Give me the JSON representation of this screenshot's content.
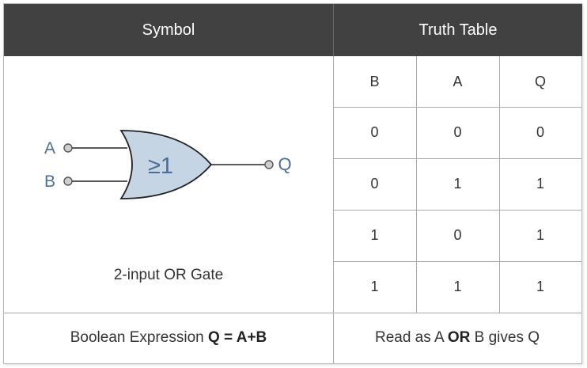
{
  "header": {
    "symbol": "Symbol",
    "truth_table": "Truth Table"
  },
  "gate": {
    "input_a": "A",
    "input_b": "B",
    "output": "Q",
    "symbol_text": "≥1",
    "caption": "2-input OR Gate",
    "fill_color": "#c5d5e4",
    "label_color": "#4a6f94"
  },
  "truth_table": {
    "columns": [
      "B",
      "A",
      "Q"
    ],
    "rows": [
      [
        "0",
        "0",
        "0"
      ],
      [
        "0",
        "1",
        "1"
      ],
      [
        "1",
        "0",
        "1"
      ],
      [
        "1",
        "1",
        "1"
      ]
    ]
  },
  "footer": {
    "expression_prefix": "Boolean Expression ",
    "expression_bold": "Q = A+B",
    "read_prefix": "Read as A ",
    "read_bold": "OR",
    "read_suffix": " B gives Q"
  }
}
